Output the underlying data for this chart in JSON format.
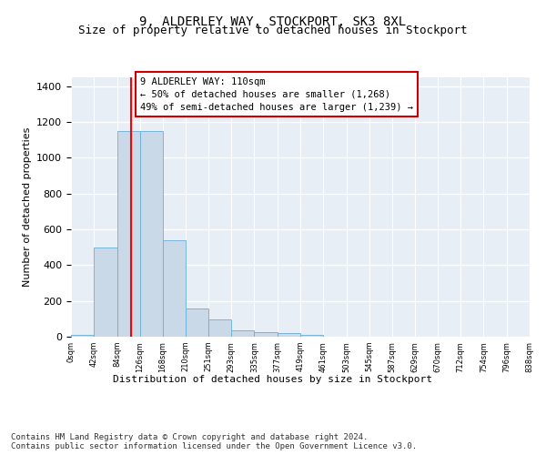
{
  "title": "9, ALDERLEY WAY, STOCKPORT, SK3 8XL",
  "subtitle": "Size of property relative to detached houses in Stockport",
  "xlabel": "Distribution of detached houses by size in Stockport",
  "ylabel": "Number of detached properties",
  "bin_edges": [
    0,
    42,
    84,
    126,
    168,
    210,
    251,
    293,
    335,
    377,
    419,
    461,
    503,
    545,
    587,
    629,
    670,
    712,
    754,
    796,
    838
  ],
  "bar_heights": [
    10,
    500,
    1150,
    1150,
    540,
    160,
    95,
    35,
    25,
    20,
    10,
    0,
    0,
    0,
    0,
    0,
    0,
    0,
    0,
    0
  ],
  "bar_color": "#c9d9e8",
  "bar_edgecolor": "#6aaed6",
  "bg_color": "#e8eef5",
  "grid_color": "#ffffff",
  "property_line_x": 110,
  "annotation_text": "9 ALDERLEY WAY: 110sqm\n← 50% of detached houses are smaller (1,268)\n49% of semi-detached houses are larger (1,239) →",
  "annotation_box_color": "#ffffff",
  "annotation_box_edgecolor": "#cc0000",
  "ylim": [
    0,
    1450
  ],
  "yticks": [
    0,
    200,
    400,
    600,
    800,
    1000,
    1200,
    1400
  ],
  "tick_labels": [
    "0sqm",
    "42sqm",
    "84sqm",
    "126sqm",
    "168sqm",
    "210sqm",
    "251sqm",
    "293sqm",
    "335sqm",
    "377sqm",
    "419sqm",
    "461sqm",
    "503sqm",
    "545sqm",
    "587sqm",
    "629sqm",
    "670sqm",
    "712sqm",
    "754sqm",
    "796sqm",
    "838sqm"
  ],
  "footer_text": "Contains HM Land Registry data © Crown copyright and database right 2024.\nContains public sector information licensed under the Open Government Licence v3.0.",
  "title_fontsize": 10,
  "subtitle_fontsize": 9,
  "annotation_fontsize": 7.5,
  "footer_fontsize": 6.5,
  "ylabel_fontsize": 8,
  "xlabel_fontsize": 8,
  "ytick_fontsize": 8,
  "xtick_fontsize": 6
}
